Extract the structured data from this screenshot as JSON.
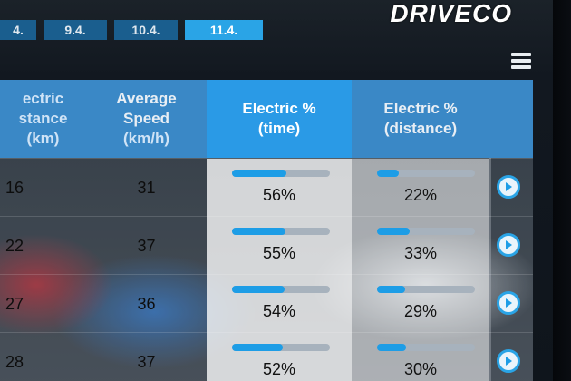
{
  "brand": {
    "logo": "DRIVECO"
  },
  "dates": [
    {
      "label": "4.",
      "active": false
    },
    {
      "label": "9.4.",
      "active": false
    },
    {
      "label": "10.4.",
      "active": false
    },
    {
      "label": "11.4.",
      "active": true
    }
  ],
  "menu": {
    "icon": "hamburger-menu-icon"
  },
  "table": {
    "headers": {
      "distance": {
        "line1": "ectric",
        "line2": "stance",
        "line3": "(km)"
      },
      "speed": {
        "line1": "Average",
        "line2": "Speed",
        "line3": "(km/h)"
      },
      "time": {
        "line1": "Electric %",
        "line2": "(time)"
      },
      "distp": {
        "line1": "Electric %",
        "line2": "(distance)"
      }
    },
    "rows": [
      {
        "distance": "16",
        "speed": "31",
        "time_pct": "56%",
        "time_fill": 0.56,
        "dist_pct": "22%",
        "dist_fill": 0.22
      },
      {
        "distance": "22",
        "speed": "37",
        "time_pct": "55%",
        "time_fill": 0.55,
        "dist_pct": "33%",
        "dist_fill": 0.33
      },
      {
        "distance": "27",
        "speed": "36",
        "time_pct": "54%",
        "time_fill": 0.54,
        "dist_pct": "29%",
        "dist_fill": 0.29
      },
      {
        "distance": "28",
        "speed": "37",
        "time_pct": "52%",
        "time_fill": 0.52,
        "dist_pct": "30%",
        "dist_fill": 0.3
      }
    ]
  },
  "colors": {
    "header": "#3a88c6",
    "header_active": "#2a9ae6",
    "bar": "#1d9de6",
    "track": "#a7b2bd"
  }
}
